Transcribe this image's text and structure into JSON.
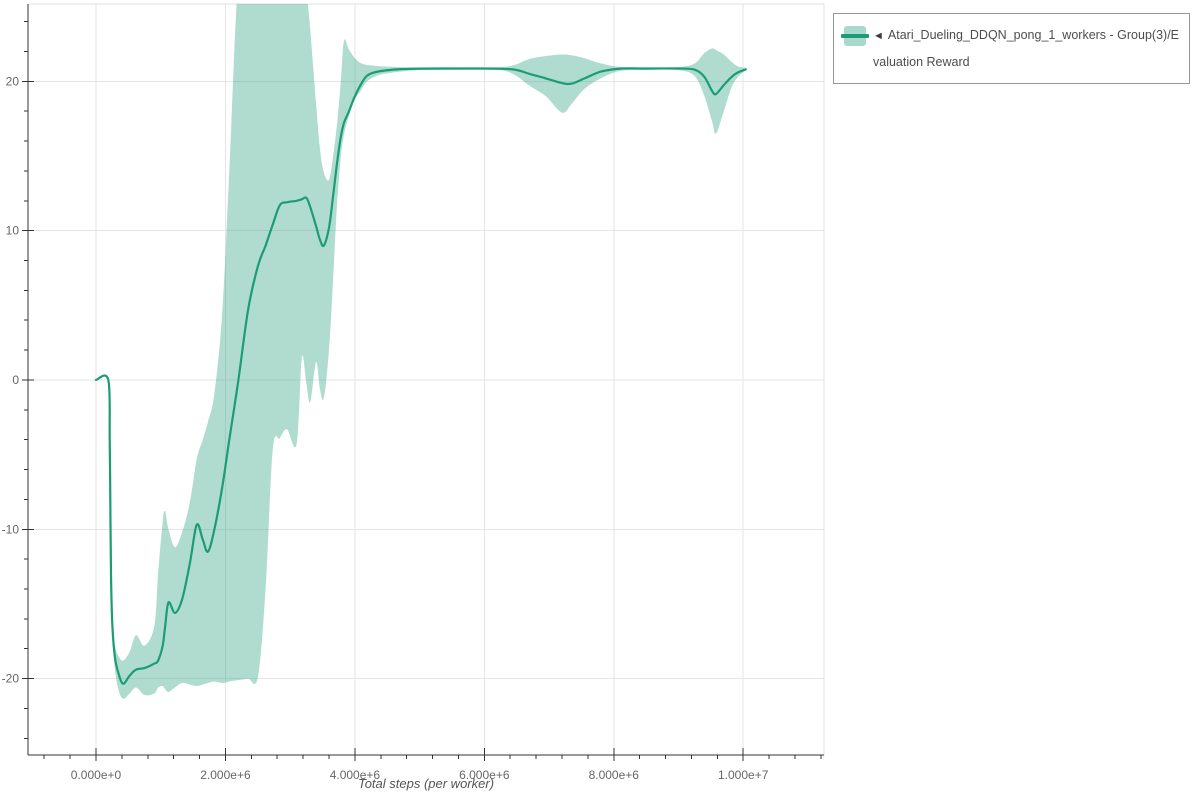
{
  "page": {
    "background": "#ffffff"
  },
  "legend": {
    "marker": "◄",
    "label": "Atari_Dueling_DDQN_pong_1_workers - Group(3)/Evaluation Reward",
    "border_color": "#979797",
    "text_color": "#4d4d4d"
  },
  "chart_data": {
    "type": "line",
    "title": "",
    "xlabel": "Total steps (per worker)",
    "ylabel": "",
    "grid": true,
    "legend_position": "top-right",
    "colors": {
      "line": "#1b9c75",
      "band_fill": "#1b9c75",
      "band_opacity": 0.35,
      "grid_line": "#e6e6e6",
      "plot_border": "#e0e0e0",
      "axis_line": "#333333",
      "tick_text": "#666666"
    },
    "xlim": [
      -1050700,
      11248300
    ],
    "ylim": [
      -25.12,
      25.18
    ],
    "x_minor_step": 400000,
    "y_minor_step": 2,
    "x_ticks": [
      {
        "value": 0,
        "label": "0.000e+0"
      },
      {
        "value": 2000000,
        "label": "2.000e+6"
      },
      {
        "value": 4000000,
        "label": "4.000e+6"
      },
      {
        "value": 6000000,
        "label": "6.000e+6"
      },
      {
        "value": 8000000,
        "label": "8.000e+6"
      },
      {
        "value": 10000000,
        "label": "1.000e+7"
      }
    ],
    "y_ticks": [
      {
        "value": 20,
        "label": "20"
      },
      {
        "value": 10,
        "label": "10"
      },
      {
        "value": 0,
        "label": "0"
      },
      {
        "value": -10,
        "label": "-10"
      },
      {
        "value": -20,
        "label": "-20"
      }
    ],
    "series": [
      {
        "name": "Atari_Dueling_DDQN_pong_1_workers - Group(3)/Evaluation Reward",
        "color": "#1b9c75",
        "points_format": [
          "steps",
          "mean",
          "min",
          "max"
        ],
        "points": [
          [
            0,
            0,
            0,
            0
          ],
          [
            190000,
            0,
            0,
            0
          ],
          [
            212000,
            -4,
            -4.4,
            -3.6
          ],
          [
            222000,
            -9,
            -9.5,
            -8.5
          ],
          [
            232000,
            -13,
            -13.6,
            -12.4
          ],
          [
            250000,
            -16.2,
            -16.9,
            -15.5
          ],
          [
            290000,
            -18.5,
            -19.3,
            -17.7
          ],
          [
            350000,
            -19.7,
            -20.8,
            -18.5
          ],
          [
            420000,
            -20.35,
            -21.35,
            -18.8
          ],
          [
            520000,
            -19.8,
            -21.0,
            -18.2
          ],
          [
            620000,
            -19.4,
            -20.6,
            -17.1
          ],
          [
            750000,
            -19.3,
            -21.1,
            -17.8
          ],
          [
            900000,
            -19.0,
            -21.0,
            -16.5
          ],
          [
            960000,
            -18.8,
            -20.6,
            -13.0
          ],
          [
            1030000,
            -17.8,
            -20.5,
            -9.5
          ],
          [
            1066000,
            -16.6,
            -20.7,
            -8.8
          ],
          [
            1120000,
            -14.9,
            -20.9,
            -10.0
          ],
          [
            1220000,
            -15.6,
            -20.6,
            -11.2
          ],
          [
            1330000,
            -14.7,
            -20.3,
            -10.2
          ],
          [
            1450000,
            -12.3,
            -20.4,
            -8.2
          ],
          [
            1556000,
            -9.7,
            -20.5,
            -5.3
          ],
          [
            1650000,
            -10.7,
            -20.4,
            -4.0
          ],
          [
            1730000,
            -11.5,
            -20.3,
            -2.8
          ],
          [
            1830000,
            -10.0,
            -20.2,
            -0.9
          ],
          [
            1950000,
            -7.2,
            -20.3,
            4.5
          ],
          [
            2060000,
            -4.0,
            -20.2,
            14.0
          ],
          [
            2200000,
            0.0,
            -20.1,
            27.0
          ],
          [
            2350000,
            4.7,
            -20.0,
            28.0
          ],
          [
            2500000,
            7.6,
            -19.9,
            28.0
          ],
          [
            2620000,
            9.0,
            -14.0,
            28.0
          ],
          [
            2730000,
            10.4,
            -4.7,
            28.0
          ],
          [
            2840000,
            11.7,
            -3.9,
            28.0
          ],
          [
            2950000,
            11.9,
            -3.3,
            28.0
          ],
          [
            3100000,
            12.0,
            -4.3,
            28.0
          ],
          [
            3180000,
            12.1,
            1.5,
            27.5
          ],
          [
            3250000,
            12.2,
            -0.2,
            26.0
          ],
          [
            3310000,
            11.6,
            -1.5,
            23.5
          ],
          [
            3400000,
            10.3,
            1.2,
            18.5
          ],
          [
            3460000,
            9.4,
            -0.6,
            15.5
          ],
          [
            3520000,
            9.0,
            -1.2,
            13.9
          ],
          [
            3600000,
            10.2,
            2.0,
            13.4
          ],
          [
            3660000,
            12.2,
            6.5,
            14.9
          ],
          [
            3720000,
            14.4,
            11.5,
            17.0
          ],
          [
            3780000,
            16.2,
            14.8,
            19.8
          ],
          [
            3830000,
            17.2,
            16.4,
            22.7
          ],
          [
            3900000,
            17.9,
            17.6,
            22.2
          ],
          [
            3990000,
            18.9,
            18.7,
            21.6
          ],
          [
            4080000,
            19.7,
            19.3,
            21.25
          ],
          [
            4180000,
            20.35,
            19.95,
            21.1
          ],
          [
            4300000,
            20.6,
            20.3,
            21.05
          ],
          [
            4450000,
            20.72,
            20.5,
            21.0
          ],
          [
            4700000,
            20.82,
            20.65,
            20.95
          ],
          [
            5000000,
            20.85,
            20.75,
            20.93
          ],
          [
            5500000,
            20.86,
            20.78,
            20.93
          ],
          [
            6000000,
            20.86,
            20.78,
            20.93
          ],
          [
            6300000,
            20.84,
            20.72,
            20.96
          ],
          [
            6500000,
            20.76,
            20.35,
            21.15
          ],
          [
            6700000,
            20.5,
            19.7,
            21.5
          ],
          [
            6950000,
            20.2,
            19.0,
            21.7
          ],
          [
            7200000,
            19.88,
            17.9,
            21.8
          ],
          [
            7350000,
            19.85,
            18.5,
            21.75
          ],
          [
            7550000,
            20.2,
            19.5,
            21.55
          ],
          [
            7800000,
            20.65,
            20.2,
            21.2
          ],
          [
            8100000,
            20.85,
            20.7,
            20.96
          ],
          [
            8500000,
            20.86,
            20.76,
            20.93
          ],
          [
            9000000,
            20.86,
            20.75,
            20.96
          ],
          [
            9250000,
            20.78,
            20.35,
            21.2
          ],
          [
            9400000,
            20.3,
            19.0,
            21.9
          ],
          [
            9520000,
            19.35,
            17.3,
            22.2
          ],
          [
            9580000,
            19.15,
            16.5,
            22.1
          ],
          [
            9700000,
            19.75,
            18.0,
            21.8
          ],
          [
            9820000,
            20.3,
            19.6,
            21.3
          ],
          [
            9920000,
            20.6,
            20.3,
            21.0
          ],
          [
            10040000,
            20.8,
            20.73,
            20.9
          ]
        ]
      }
    ]
  }
}
